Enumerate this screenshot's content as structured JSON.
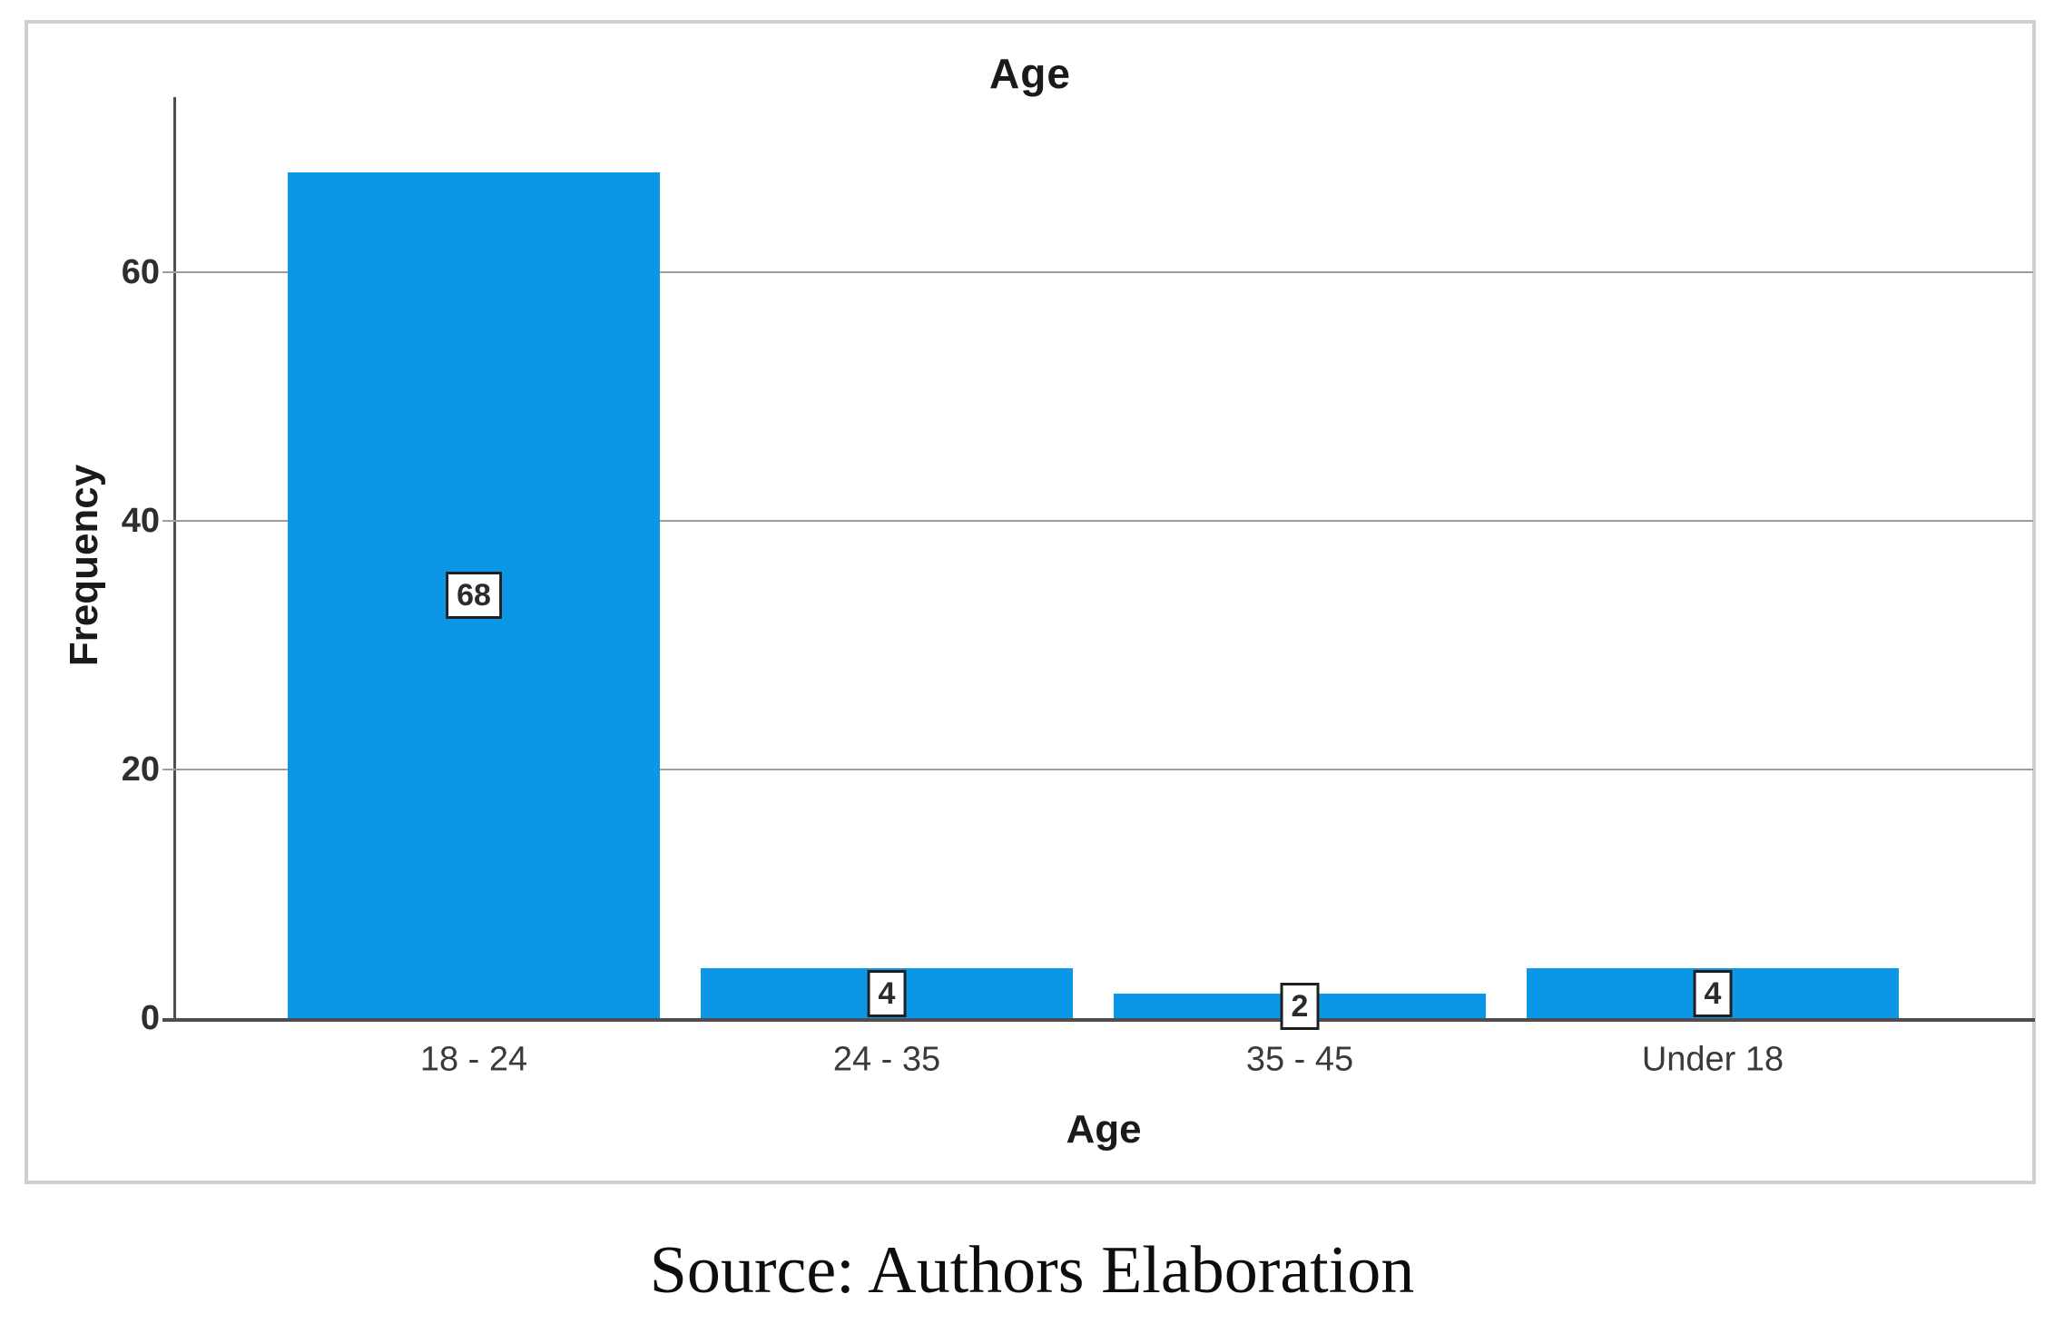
{
  "figure": {
    "source_caption": "Source: Authors Elaboration"
  },
  "chart_data": {
    "type": "bar",
    "title": "Age",
    "xlabel": "Age",
    "ylabel": "Frequency",
    "categories": [
      "18 - 24",
      "24 - 35",
      "35 - 45",
      "Under 18"
    ],
    "values": [
      68,
      4,
      2,
      4
    ],
    "bar_labels": [
      "68",
      "4",
      "2",
      "4"
    ],
    "yticks": [
      0,
      20,
      40,
      60
    ],
    "ylim": [
      0,
      74
    ],
    "grid": "horizontal-gridlines",
    "legend": "none",
    "bar_color": "#0c96e6",
    "value_label_style": "white box, black border, centered at bar mid-height"
  }
}
